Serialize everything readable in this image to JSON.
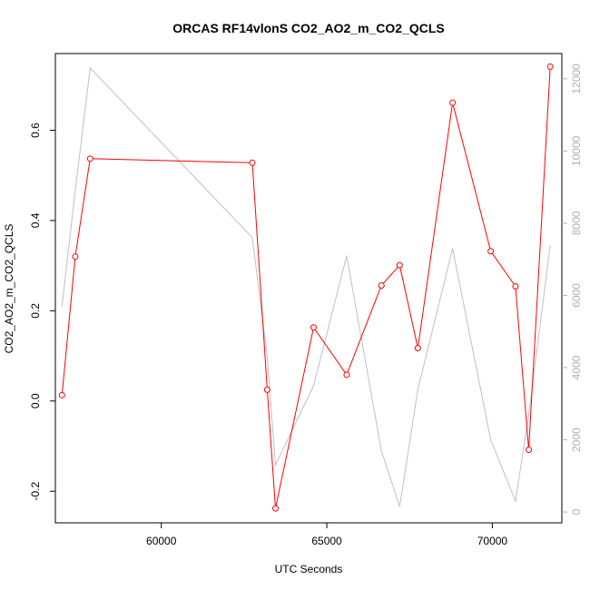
{
  "chart_data": {
    "type": "line",
    "title": "ORCAS RF14vlonS CO2_AO2_m_CO2_QCLS",
    "xlabel": "UTC Seconds",
    "ylabel": "CO2_AO2_m_CO2_QCLS",
    "xlim": [
      56800,
      72100
    ],
    "ylim": [
      -0.27,
      0.77
    ],
    "y2lim": [
      -300,
      12700
    ],
    "x_ticks": [
      60000,
      65000,
      70000
    ],
    "y_ticks": [
      -0.2,
      0.0,
      0.2,
      0.4,
      0.6
    ],
    "y_tick_labels": [
      "-0.2",
      "0.0",
      "0.2",
      "0.4",
      "0.6"
    ],
    "y2_ticks": [
      0,
      2000,
      4000,
      6000,
      8000,
      10000,
      12000
    ],
    "grid": false,
    "legend": "none",
    "series": [
      {
        "axis": "left",
        "color": "#ff0000",
        "marker": "open-circle",
        "x": [
          57000,
          57400,
          57850,
          62750,
          63200,
          63450,
          64600,
          65600,
          66650,
          67200,
          67750,
          68800,
          69950,
          70700,
          71100,
          71750
        ],
        "y": [
          0.013,
          0.32,
          0.537,
          0.528,
          0.025,
          -0.238,
          0.163,
          0.058,
          0.256,
          0.301,
          0.117,
          0.661,
          0.332,
          0.254,
          -0.108,
          0.741
        ]
      },
      {
        "axis": "right",
        "color": "#c0c0c0",
        "marker": "none",
        "x": [
          57000,
          57400,
          57850,
          62750,
          63200,
          63450,
          64600,
          65600,
          66650,
          67200,
          67750,
          68800,
          69950,
          70700,
          71100,
          71750
        ],
        "y": [
          5700,
          8900,
          12300,
          7600,
          4300,
          1300,
          3500,
          7100,
          1700,
          150,
          3400,
          7300,
          2000,
          300,
          2700,
          7400
        ]
      }
    ]
  }
}
